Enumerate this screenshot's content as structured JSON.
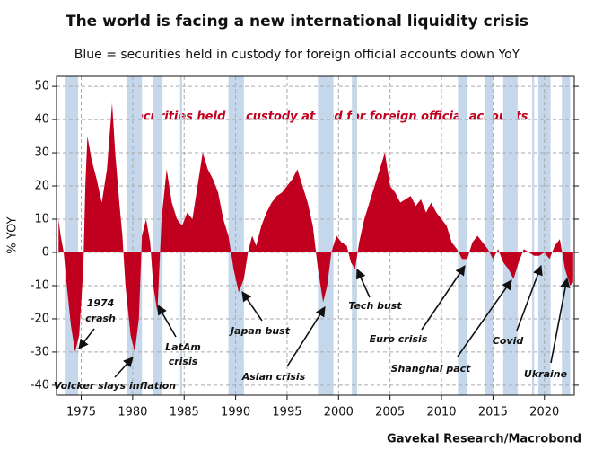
{
  "chart_data": {
    "type": "area",
    "title": "The world is facing a new international liquidity crisis",
    "subtitle": "Blue = securities held in custody for foreign official accounts down YoY",
    "series_label": "Securities held in custody at Fed for foreign official accounts",
    "y_label": "% YOY",
    "source": "Gavekal Research/Macrobond",
    "color": "#c0001e",
    "shade_color": "#c5d7ea",
    "grid": true,
    "xlim": [
      1972.6,
      2022.9
    ],
    "ylim": [
      -43,
      53
    ],
    "xticks": [
      1975,
      1980,
      1985,
      1990,
      1995,
      2000,
      2005,
      2010,
      2015,
      2020
    ],
    "yticks": [
      -40,
      -30,
      -20,
      -10,
      0,
      10,
      20,
      30,
      40,
      50
    ],
    "x": [
      1972.8,
      1973.0,
      1973.3,
      1973.6,
      1974.0,
      1974.4,
      1974.8,
      1975.2,
      1975.4,
      1975.6,
      1976.0,
      1976.5,
      1977.0,
      1977.5,
      1978.0,
      1978.3,
      1978.7,
      1979.0,
      1979.3,
      1979.8,
      1980.2,
      1980.6,
      1980.9,
      1981.3,
      1981.7,
      1982.0,
      1982.4,
      1982.8,
      1983.3,
      1983.8,
      1984.3,
      1984.8,
      1985.3,
      1985.8,
      1986.3,
      1986.8,
      1987.3,
      1987.8,
      1988.3,
      1988.8,
      1989.3,
      1989.8,
      1990.3,
      1990.8,
      1991.2,
      1991.6,
      1992.0,
      1992.5,
      1993.0,
      1993.5,
      1994.0,
      1994.5,
      1995.0,
      1995.5,
      1996.0,
      1996.5,
      1997.0,
      1997.5,
      1998.0,
      1998.5,
      1998.9,
      1999.3,
      1999.8,
      2000.3,
      2000.8,
      2001.2,
      2001.6,
      2002.0,
      2002.5,
      2003.0,
      2003.5,
      2004.0,
      2004.5,
      2005.0,
      2005.5,
      2006.0,
      2006.5,
      2007.0,
      2007.5,
      2008.0,
      2008.5,
      2009.0,
      2009.5,
      2010.0,
      2010.5,
      2011.0,
      2011.5,
      2012.0,
      2012.5,
      2013.0,
      2013.5,
      2014.0,
      2014.5,
      2015.0,
      2015.5,
      2016.0,
      2016.5,
      2017.0,
      2017.5,
      2018.0,
      2018.5,
      2019.0,
      2019.5,
      2020.0,
      2020.5,
      2021.0,
      2021.5,
      2022.0,
      2022.5,
      2022.8
    ],
    "values": [
      10,
      5,
      0,
      -10,
      -22,
      -30,
      -25,
      -5,
      20,
      35,
      28,
      22,
      15,
      25,
      45,
      30,
      15,
      5,
      -10,
      -25,
      -30,
      -20,
      5,
      10,
      3,
      -10,
      -18,
      10,
      25,
      15,
      10,
      8,
      12,
      10,
      20,
      30,
      25,
      22,
      18,
      10,
      5,
      -5,
      -12,
      -8,
      0,
      5,
      2,
      8,
      12,
      15,
      17,
      18,
      20,
      22,
      25,
      20,
      15,
      8,
      -5,
      -15,
      -10,
      0,
      5,
      3,
      2,
      -3,
      -5,
      3,
      10,
      15,
      20,
      25,
      30,
      20,
      18,
      15,
      16,
      17,
      14,
      16,
      12,
      15,
      12,
      10,
      8,
      3,
      1,
      -2,
      -2,
      3,
      5,
      3,
      1,
      -2,
      1,
      -3,
      -5,
      -8,
      -3,
      1,
      0,
      -1,
      -1,
      0,
      -2,
      2,
      4,
      -5,
      -10,
      -9
    ],
    "shaded": [
      [
        1973.4,
        1974.7
      ],
      [
        1979.4,
        1980.9
      ],
      [
        1982.0,
        1982.9
      ],
      [
        1984.6,
        1984.8
      ],
      [
        1989.3,
        1990.8
      ],
      [
        1998.0,
        1999.5
      ],
      [
        2001.3,
        2001.8
      ],
      [
        2011.6,
        2012.5
      ],
      [
        2014.2,
        2015.0
      ],
      [
        2016.0,
        2017.4
      ],
      [
        2018.8,
        2019.0
      ],
      [
        2019.4,
        2020.6
      ],
      [
        2021.7,
        2022.5
      ]
    ],
    "annotations": [
      "1974",
      "crash",
      "Volcker slays inflation",
      "LatAm",
      "crisis",
      "Japan bust",
      "Asian crisis",
      "Tech bust",
      "Euro crisis",
      "Shanghai pact",
      "Covid",
      "Ukraine"
    ]
  }
}
